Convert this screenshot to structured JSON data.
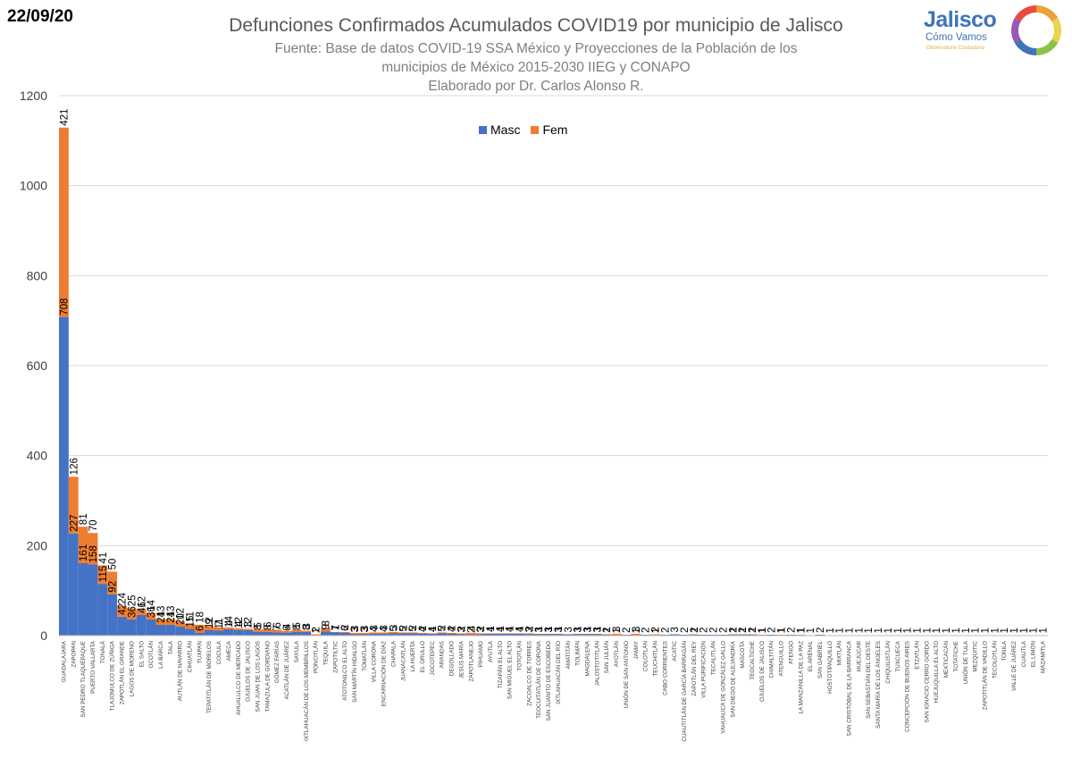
{
  "header": {
    "date": "22/09/20",
    "title": "Defunciones Confirmados Acumulados COVID19 por municipio de Jalisco",
    "subtitle": "Fuente: Base de datos COVID-19 SSA México y Proyecciones de la Población de los\nmunicipios de México 2015-2030 IIEG y CONAPO\nElaborado por Dr. Carlos Alonso R."
  },
  "logo": {
    "name": "Jalisco",
    "tagline": "Cómo Vamos",
    "subtagline": "Observatorio Ciudadano",
    "ring_colors": [
      "#e9a13b",
      "#e8d44d",
      "#8bc34a",
      "#3f74b9",
      "#9b59b6",
      "#e74c3c"
    ]
  },
  "colors": {
    "masc": "#4472c4",
    "fem": "#ed7d31",
    "grid": "#d9d9d9"
  },
  "chart_data": {
    "type": "bar",
    "stacked": true,
    "title": "Defunciones Confirmados Acumulados COVID19 por municipio de Jalisco",
    "ylim": [
      0,
      1200
    ],
    "yticks": [
      0,
      200,
      400,
      600,
      800,
      1000,
      1200
    ],
    "grid": true,
    "legend_position": "top-center",
    "categories": [
      "GUADALAJARA",
      "ZAPOPAN",
      "SAN PEDRO TLAQUEPAQUE",
      "PUERTO VALLARTA",
      "TONALÁ",
      "TLAJOMULCO DE ZÚÑIGA",
      "ZAPOTLÁN EL GRANDE",
      "LAGOS DE MORENO",
      "EL SALTO",
      "OCOTLÁN",
      "LA BARCA",
      "TALA",
      "AUTLÁN DE NAVARRO",
      "CIHUATLÁN",
      "TUXPAN",
      "TEPATITLÁN DE MORELOS",
      "COCULA",
      "AMECA",
      "AHUALULCO DE MERCADO",
      "OJUELOS DE JALISCO",
      "SAN JUAN DE LOS LAGOS",
      "TAMAZULA DE GORDIANO",
      "GÓMEZ FARÍAS",
      "ACATLÁN DE JUÁREZ",
      "SAYULA",
      "IXTLAHUACÁN DE LOS MEMBRILLOS",
      "PONCITLÁN",
      "TEQUILA",
      "ZAPOTILTIC",
      "ATOTONILCO EL ALTO",
      "SAN MARTÍN HIDALGO",
      "TOMATLÁN",
      "VILLA CORONA",
      "ENCARNACIÓN DE DÍAZ",
      "CHAPALA",
      "JUANACATLÁN",
      "LA HUERTA",
      "EL GRULLO",
      "JOCOTEPEC",
      "ARANDAS",
      "DEGOLLADO",
      "JESÚS MARÍA",
      "ZAPOTLANEJO",
      "PIHUAMO",
      "AYUTLA",
      "TIZAPÁN EL ALTO",
      "SAN MIGUEL EL ALTO",
      "TOTOTLÁN",
      "ZACOALCO DE TORRES",
      "TEOCUITATLÁN DE CORONA",
      "SAN JUANITO DE ESCOBEDO",
      "IXTLAHUACÁN DEL RÍO",
      "AMATITÁN",
      "TOLIMÁN",
      "MAGDALENA",
      "JALOSTOTITLÁN",
      "SAN JULIÁN",
      "AYOTLÁN",
      "UNIÓN DE SAN ANTONIO",
      "JAMAY",
      "COLOTLÁN",
      "TEUCHITLÁN",
      "CABO CORRIENTES",
      "ACATIC",
      "CUAUTITLÁN DE GARCÍA BARRAGÁN",
      "ZAPOTLÁN DEL REY",
      "VILLA PURIFICACIÓN",
      "TECALITLÁN",
      "YAHUALICA DE GONZÁLEZ GALLO",
      "SAN DIEGO DE ALEJANDRÍA",
      "MASCOTA",
      "TEOCALTICHE",
      "OJUELOS DE JALISCO",
      "CHIMALTITÁN",
      "ATENGUILLO",
      "ATENGO",
      "LA MANZANILLA DE LA PAZ",
      "EL ARENAL",
      "SAN GABRIEL",
      "HOSTOTIPAQUILLO",
      "MIXTLÁN",
      "SAN CRISTÓBAL DE LA BARRANCA",
      "HUEJÚCAR",
      "SAN SEBASTIÁN DEL OESTE",
      "SANTA MARÍA DE LOS ÁNGELES",
      "CHIQUILISTLÁN",
      "TUXCUECA",
      "CONCEPCIÓN DE BUENOS AIRES",
      "ETZATLÁN",
      "SAN IGNACIO CERRO GORDO",
      "HUEJUQUILLA EL ALTO",
      "MEXTICACÁN",
      "TOTATICHE",
      "UNIÓN DE TULA",
      "MEZQUITIC",
      "ZAPOTITLÁN DE VADILLO",
      "TECOLOTLÁN",
      "TONILA",
      "VALLE DE JUÁREZ",
      "CUAUTLA",
      "EL LIMÓN",
      "MAZAMITLA"
    ],
    "series": [
      {
        "name": "Masc",
        "values": [
          708,
          227,
          161,
          158,
          115,
          92,
          42,
          36,
          46,
          36,
          24,
          24,
          20,
          15,
          6,
          12,
          11,
          14,
          12,
          12,
          8,
          8,
          7,
          6,
          8,
          8,
          1,
          9,
          7,
          6,
          3,
          3,
          4,
          4,
          5,
          5,
          5,
          4,
          4,
          5,
          4,
          3,
          2,
          3,
          4,
          4,
          4,
          4,
          3,
          3,
          3,
          3,
          3,
          3,
          3,
          3,
          2,
          1,
          2,
          1,
          2,
          1,
          2,
          3,
          2,
          2,
          2,
          2,
          2,
          2,
          2,
          2,
          1,
          2,
          1,
          2,
          1,
          1,
          2,
          1,
          1,
          1,
          1,
          1,
          1,
          1,
          1,
          1,
          1,
          1,
          1,
          1,
          1,
          1,
          1,
          1,
          1,
          1,
          1,
          1,
          1,
          1
        ]
      },
      {
        "name": "Fem",
        "values": [
          421,
          126,
          81,
          70,
          41,
          50,
          24,
          25,
          12,
          14,
          13,
          13,
          12,
          11,
          18,
          9,
          7,
          4,
          4,
          3,
          5,
          6,
          6,
          4,
          5,
          3,
          2,
          8,
          1,
          2,
          3,
          3,
          3,
          3,
          3,
          2,
          2,
          2,
          1,
          2,
          2,
          2,
          4,
          2,
          1,
          1,
          1,
          1,
          2,
          1,
          1,
          1,
          0,
          1,
          1,
          1,
          1,
          3,
          0,
          3,
          0,
          2,
          0,
          0,
          0,
          1,
          0,
          0,
          0,
          1,
          1,
          1,
          1,
          0,
          1,
          0,
          1,
          0,
          0,
          0,
          0,
          0,
          0,
          0,
          0,
          0,
          0,
          0,
          0,
          0,
          0,
          0,
          0,
          0,
          0,
          0,
          0,
          0,
          0,
          0,
          0,
          0
        ]
      }
    ]
  }
}
